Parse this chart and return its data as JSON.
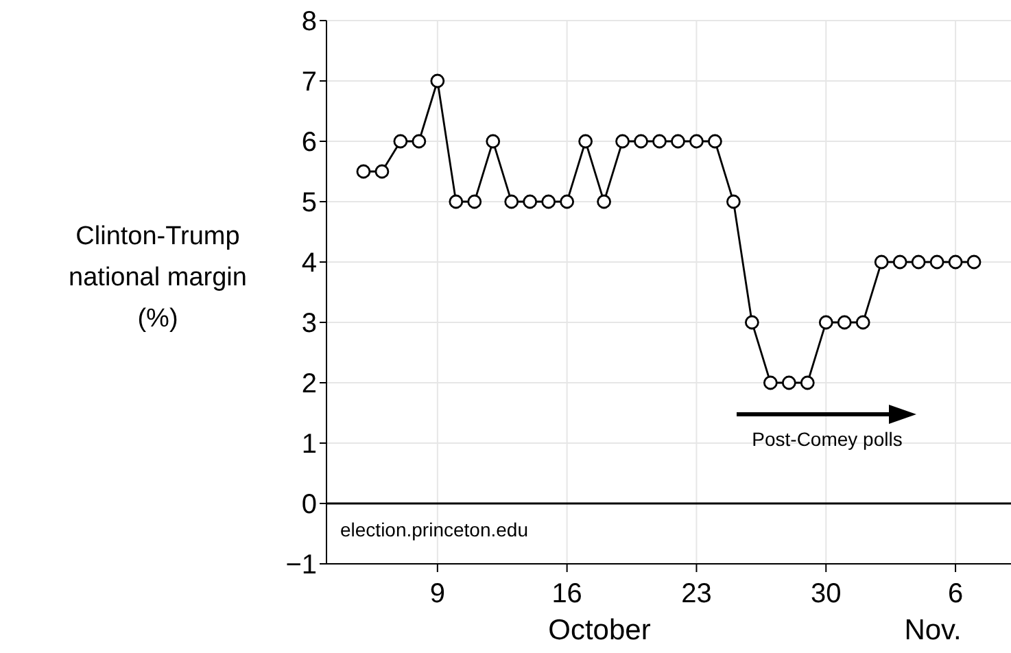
{
  "chart_data": {
    "type": "line",
    "ylabel": "Clinton-Trump national margin (%)",
    "xlabel": "October",
    "x": [
      "--10-05",
      "--10-06",
      "--10-07",
      "--10-08",
      "--10-09",
      "--10-10",
      "--10-11",
      "--10-12",
      "--10-13",
      "--10-14",
      "--10-15",
      "--10-16",
      "--10-17",
      "--10-18",
      "--10-19",
      "--10-20",
      "--10-21",
      "--10-22",
      "--10-23",
      "--10-24",
      "--10-25",
      "--10-26",
      "--10-27",
      "--10-28",
      "--10-29",
      "--10-30",
      "--10-31",
      "--11-01",
      "--11-02",
      "--11-03",
      "--11-04",
      "--11-05",
      "--11-06",
      "--11-07"
    ],
    "series": [
      {
        "color": "#000000",
        "values": [
          5.5,
          5.5,
          6,
          6,
          7,
          5,
          5,
          6,
          5,
          5,
          5,
          5,
          6,
          5,
          6,
          6,
          6,
          6,
          6,
          6,
          5,
          3,
          2,
          2,
          2,
          3,
          3,
          3,
          4,
          4,
          4,
          4,
          4,
          4
        ]
      }
    ],
    "xlim": [
      "--10-03",
      "--11-09"
    ],
    "xticks": [
      {
        "value": "--10-09",
        "label": "9"
      },
      {
        "value": "--10-16",
        "label": "16"
      },
      {
        "value": "--10-23",
        "label": "23"
      },
      {
        "value": "--10-30",
        "label": "30"
      },
      {
        "value": "--11-06",
        "label": "6"
      }
    ],
    "ylim": [
      -1,
      8
    ],
    "yticks": [
      {
        "value": -1,
        "label": "−1"
      },
      0,
      1,
      2,
      3,
      4,
      5,
      6,
      7,
      8
    ],
    "ref_lines": [
      {
        "axis": "y",
        "value": 0,
        "color": "#000000"
      }
    ],
    "annotations": [
      "Nov.",
      "election.princeton.edu",
      "Post-Comey polls"
    ],
    "grid": true,
    "marker": "circle",
    "line_style": "solid"
  }
}
